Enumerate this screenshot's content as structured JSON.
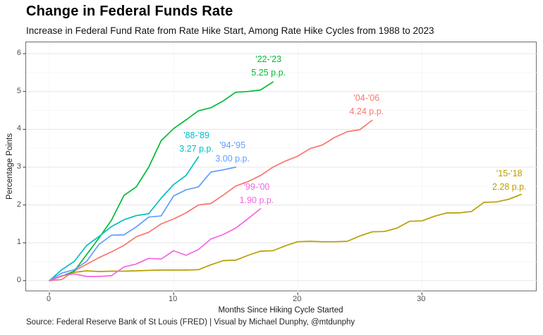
{
  "header": {
    "title": "Change in Federal Funds Rate",
    "subtitle": "Increase in Federal Fund Rate from Rate Hike Start, Among Rate Hike Cycles from 1988 to 2023"
  },
  "caption": "Source: Federal Reserve Bank of St Louis (FRED) | Visual by Michael Dunphy, @mtdunphy",
  "chart_data": {
    "type": "line",
    "title": "Change in Federal Funds Rate",
    "xlabel": "Months Since Hiking Cycle Started",
    "ylabel": "Percentage Points",
    "x_unit": "months since hiking cycle started (series index = month)",
    "xlim": [
      -1.88,
      39.3
    ],
    "ylim": [
      -0.3,
      6.3
    ],
    "x_ticks": [
      0,
      10,
      20,
      30
    ],
    "y_ticks": [
      0,
      1,
      2,
      3,
      4,
      5,
      6
    ],
    "y_minor_gridlines": [
      0.5,
      1.5,
      2.5,
      3.5,
      4.5,
      5.5
    ],
    "grid": {
      "horizontal_major": true,
      "horizontal_minor": true,
      "vertical_major": "very faint"
    },
    "legend": "none (direct line labels)",
    "colors": {
      "major_grid": "#e6e6e6",
      "minor_grid": "#f3f3f3",
      "vertical_grid": "#f6f6f6",
      "panel_border": "#6f6f6f",
      "tick_text": "#4d4d4d"
    },
    "series": [
      {
        "name": "'04-'06",
        "end_value_label": "4.24 p.p.",
        "color": "#F8766D",
        "label_anchor": {
          "month": 25.6,
          "value": 4.62
        },
        "values": [
          0,
          0.03,
          0.26,
          0.43,
          0.61,
          0.76,
          0.93,
          1.16,
          1.28,
          1.5,
          1.63,
          1.79,
          2.0,
          2.04,
          2.26,
          2.5,
          2.62,
          2.78,
          3.0,
          3.16,
          3.29,
          3.49,
          3.59,
          3.79,
          3.94,
          3.99,
          4.24
        ]
      },
      {
        "name": "'15-'18",
        "end_value_label": "2.28 p.p.",
        "color": "#B79F00",
        "label_anchor": {
          "month": 37.1,
          "value": 2.63
        },
        "values": [
          0,
          0.12,
          0.22,
          0.26,
          0.24,
          0.25,
          0.25,
          0.26,
          0.27,
          0.28,
          0.28,
          0.28,
          0.29,
          0.42,
          0.53,
          0.54,
          0.67,
          0.78,
          0.79,
          0.92,
          1.03,
          1.04,
          1.03,
          1.03,
          1.04,
          1.18,
          1.29,
          1.3,
          1.39,
          1.57,
          1.58,
          1.7,
          1.79,
          1.79,
          1.83,
          2.07,
          2.08,
          2.15,
          2.28
        ]
      },
      {
        "name": "'22-'23",
        "end_value_label": "5.25 p.p.",
        "color": "#00BA38",
        "label_anchor": {
          "month": 17.7,
          "value": 5.65
        },
        "values": [
          0,
          0.12,
          0.25,
          0.69,
          1.13,
          1.6,
          2.25,
          2.48,
          3.0,
          3.7,
          4.02,
          4.25,
          4.49,
          4.57,
          4.75,
          4.98,
          5.0,
          5.04,
          5.25
        ]
      },
      {
        "name": "'88-'89",
        "end_value_label": "3.27 p.p.",
        "color": "#00BFC4",
        "label_anchor": {
          "month": 11.9,
          "value": 3.63
        },
        "values": [
          0,
          0.29,
          0.51,
          0.93,
          1.17,
          1.43,
          1.61,
          1.72,
          1.77,
          2.18,
          2.54,
          2.78,
          3.27
        ]
      },
      {
        "name": "'94-'95",
        "end_value_label": "3.00 p.p.",
        "color": "#619CFF",
        "label_anchor": {
          "month": 14.8,
          "value": 3.37
        },
        "values": [
          0,
          0.2,
          0.29,
          0.51,
          0.96,
          1.2,
          1.21,
          1.42,
          1.68,
          1.71,
          2.24,
          2.4,
          2.48,
          2.87,
          2.93,
          3.0
        ]
      },
      {
        "name": "'99-'00",
        "end_value_label": "1.90 p.p.",
        "color": "#F564E3",
        "label_anchor": {
          "month": 16.75,
          "value": 2.27
        },
        "values": [
          0,
          0.13,
          0.18,
          0.11,
          0.11,
          0.13,
          0.36,
          0.44,
          0.59,
          0.57,
          0.79,
          0.67,
          0.82,
          1.1,
          1.22,
          1.39,
          1.64,
          1.9
        ]
      }
    ]
  }
}
